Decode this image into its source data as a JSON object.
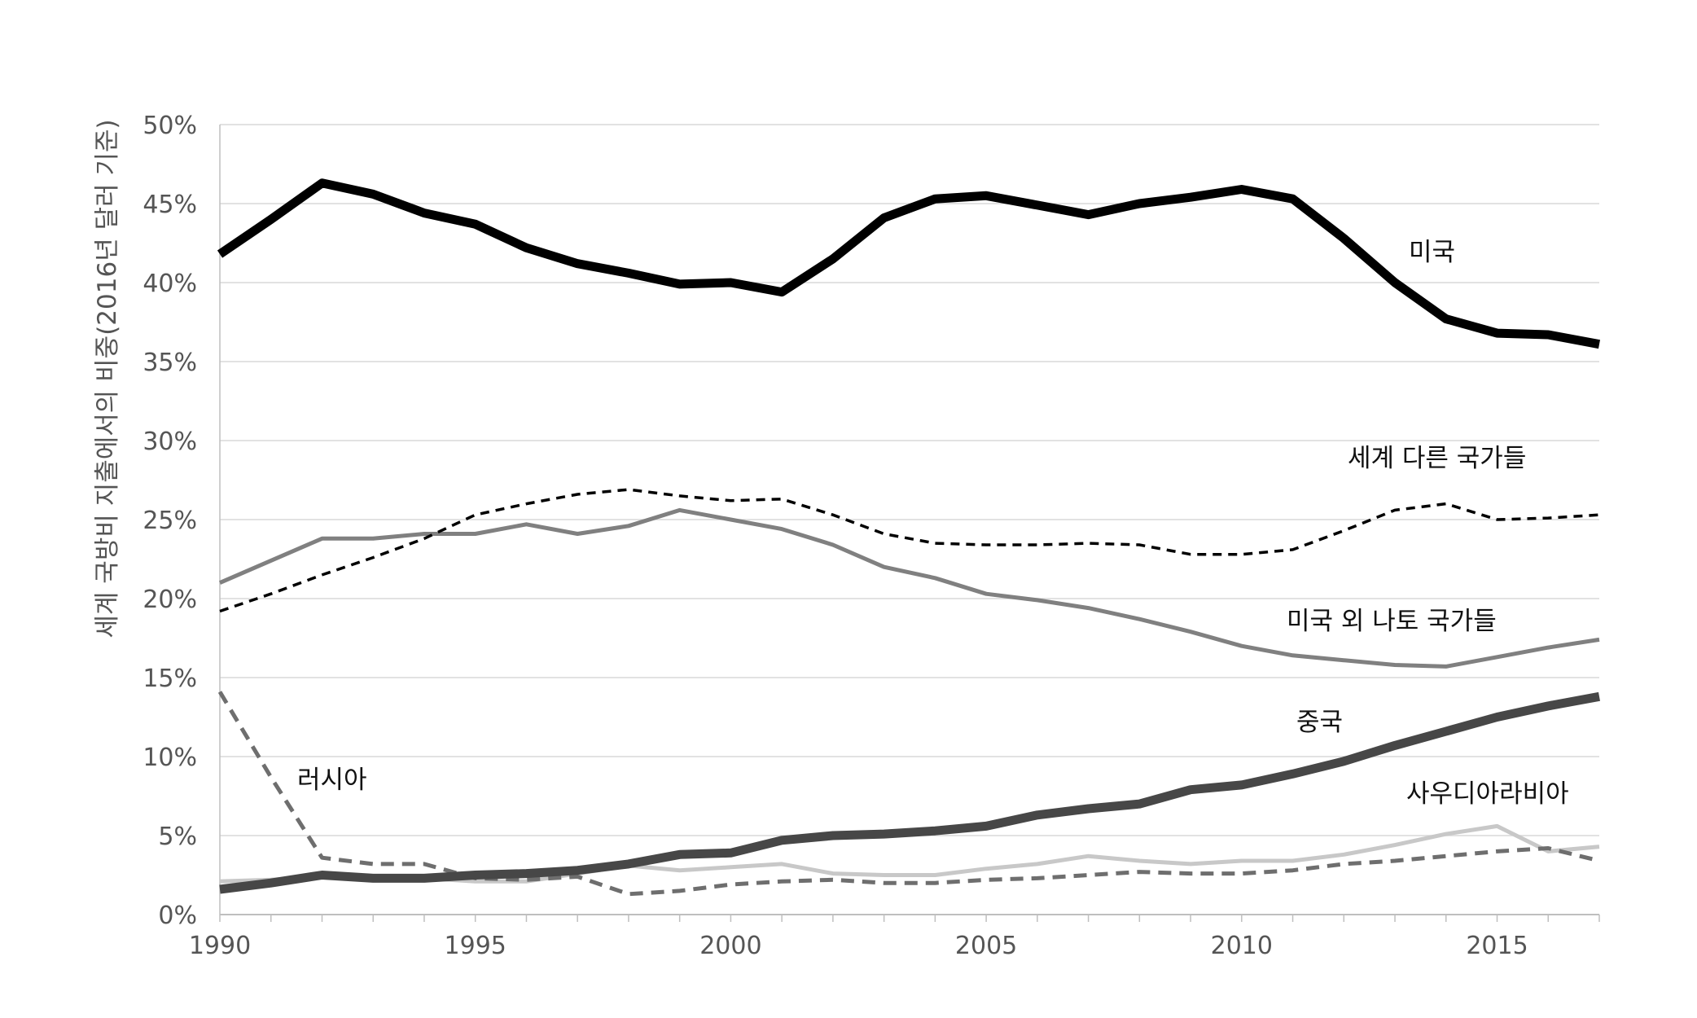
{
  "chart_data": {
    "type": "line",
    "title": "",
    "xlabel": "",
    "ylabel": "세계 국방비 지출에서의 비중(2016년 달러 기준)",
    "xlim": [
      1990,
      2017
    ],
    "ylim": [
      0,
      50
    ],
    "x_ticks": [
      1990,
      1995,
      2000,
      2005,
      2010,
      2015
    ],
    "y_ticks": [
      0,
      5,
      10,
      15,
      20,
      25,
      30,
      35,
      40,
      45,
      50
    ],
    "y_tick_labels": [
      "0%",
      "5%",
      "10%",
      "15%",
      "20%",
      "25%",
      "30%",
      "35%",
      "40%",
      "45%",
      "50%"
    ],
    "grid": "horizontal",
    "legend": "inline labels",
    "x": [
      1990,
      1991,
      1992,
      1993,
      1994,
      1995,
      1996,
      1997,
      1998,
      1999,
      2000,
      2001,
      2002,
      2003,
      2004,
      2005,
      2006,
      2007,
      2008,
      2009,
      2010,
      2011,
      2012,
      2013,
      2014,
      2015,
      2016,
      2017
    ],
    "series": [
      {
        "name": "미국",
        "color": "#000000",
        "style": "solid-thick",
        "values": [
          41.8,
          44.0,
          46.3,
          45.6,
          44.4,
          43.7,
          42.2,
          41.2,
          40.6,
          39.9,
          40.0,
          39.4,
          41.5,
          44.1,
          45.3,
          45.5,
          44.9,
          44.3,
          45.0,
          45.4,
          45.9,
          45.3,
          42.8,
          40.0,
          37.7,
          36.8,
          36.7,
          36.1
        ]
      },
      {
        "name": "세계 다른 국가들",
        "color": "#000000",
        "style": "dashed",
        "values": [
          19.2,
          20.3,
          21.5,
          22.6,
          23.8,
          25.3,
          26.0,
          26.6,
          26.9,
          26.5,
          26.2,
          26.3,
          25.3,
          24.1,
          23.5,
          23.4,
          23.4,
          23.5,
          23.4,
          22.8,
          22.8,
          23.1,
          24.3,
          25.6,
          26.0,
          25.0,
          25.1,
          25.3
        ]
      },
      {
        "name": "미국 외 나토 국가들",
        "color": "#808080",
        "style": "solid",
        "values": [
          21.0,
          22.4,
          23.8,
          23.8,
          24.1,
          24.1,
          24.7,
          24.1,
          24.6,
          25.6,
          25.0,
          24.4,
          23.4,
          22.0,
          21.3,
          20.3,
          19.9,
          19.4,
          18.7,
          17.9,
          17.0,
          16.4,
          16.1,
          15.8,
          15.7,
          16.3,
          16.9,
          17.4
        ]
      },
      {
        "name": "중국",
        "color": "#474747",
        "style": "solid-thick",
        "values": [
          1.6,
          2.0,
          2.5,
          2.3,
          2.3,
          2.5,
          2.6,
          2.8,
          3.2,
          3.8,
          3.9,
          4.7,
          5.0,
          5.1,
          5.3,
          5.6,
          6.3,
          6.7,
          7.0,
          7.9,
          8.2,
          8.9,
          9.7,
          10.7,
          11.6,
          12.5,
          13.2,
          13.8
        ]
      },
      {
        "name": "사우디아라비아",
        "color": "#c8c8c8",
        "style": "solid",
        "values": [
          2.1,
          2.2,
          2.4,
          2.4,
          2.3,
          2.1,
          2.1,
          2.6,
          3.1,
          2.8,
          3.0,
          3.2,
          2.6,
          2.5,
          2.5,
          2.9,
          3.2,
          3.7,
          3.4,
          3.2,
          3.4,
          3.4,
          3.8,
          4.4,
          5.1,
          5.6,
          4.0,
          4.3
        ]
      },
      {
        "name": "러시아",
        "color": "#6e6e6e",
        "style": "dashed-thick",
        "values": [
          14.1,
          8.7,
          3.6,
          3.2,
          3.2,
          2.3,
          2.2,
          2.4,
          1.3,
          1.5,
          1.9,
          2.1,
          2.2,
          2.0,
          2.0,
          2.2,
          2.3,
          2.5,
          2.7,
          2.6,
          2.6,
          2.8,
          3.2,
          3.4,
          3.7,
          4.0,
          4.2,
          3.4
        ]
      }
    ]
  }
}
